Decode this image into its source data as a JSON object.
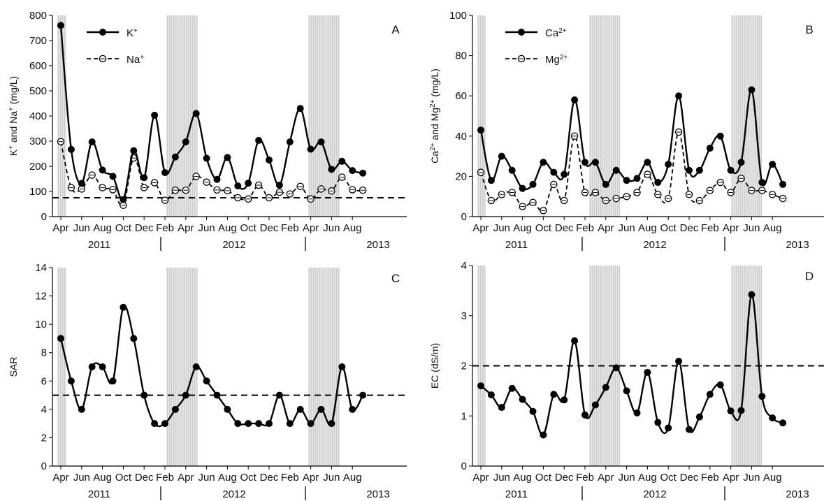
{
  "chart_data": [
    {
      "panel": "A",
      "type": "line",
      "ylabel_main": "K",
      "ylabel_sup1": "+",
      "ylabel_mid": " and Na",
      "ylabel_sup2": "+",
      "ylabel_tail": " (mg/L)",
      "ylim": [
        0,
        800
      ],
      "yticks": [
        0,
        100,
        200,
        300,
        400,
        500,
        600,
        700,
        800
      ],
      "threshold": 75,
      "series": [
        {
          "name_base": "K",
          "name_sup": "+",
          "marker": "filled",
          "line": "solid",
          "values": [
            760,
            267,
            132,
            297,
            185,
            160,
            68,
            262,
            155,
            403,
            175,
            237,
            297,
            410,
            232,
            148,
            235,
            122,
            133,
            303,
            225,
            125,
            297,
            430,
            268,
            297,
            188,
            220,
            183,
            173
          ]
        },
        {
          "name_base": "Na",
          "name_sup": "+",
          "marker": "open",
          "line": "dashed",
          "values": [
            298,
            115,
            110,
            165,
            115,
            107,
            45,
            233,
            115,
            135,
            65,
            105,
            105,
            160,
            137,
            106,
            103,
            75,
            70,
            125,
            75,
            97,
            90,
            120,
            70,
            110,
            102,
            157,
            107,
            105
          ]
        }
      ]
    },
    {
      "panel": "B",
      "type": "line",
      "ylabel_main": "Ca",
      "ylabel_sup1": "2+",
      "ylabel_mid": " and Mg",
      "ylabel_sup2": "2+",
      "ylabel_tail": " (mg/L)",
      "ylim": [
        0,
        100
      ],
      "yticks": [
        0,
        20,
        40,
        60,
        80,
        100
      ],
      "series": [
        {
          "name_base": "Ca",
          "name_sup": "2+",
          "marker": "filled",
          "line": "solid",
          "values": [
            43,
            18,
            30,
            23,
            14,
            16,
            27,
            22,
            21,
            58,
            27,
            27,
            16,
            23,
            18,
            19,
            27,
            17,
            26,
            60,
            23,
            23,
            34,
            40,
            23,
            27,
            63,
            17,
            26,
            16
          ]
        },
        {
          "name_base": "Mg",
          "name_sup": "2+",
          "marker": "open",
          "line": "dashed",
          "values": [
            22,
            8,
            11,
            12,
            5,
            7,
            3,
            16,
            8,
            40,
            12,
            12,
            8,
            9,
            10,
            12,
            21,
            11,
            9,
            42,
            11,
            8,
            13,
            17,
            12,
            19,
            13,
            13,
            11,
            9
          ]
        }
      ]
    },
    {
      "panel": "C",
      "type": "line",
      "ylabel": "SAR",
      "ylim": [
        0,
        14
      ],
      "yticks": [
        0,
        2,
        4,
        6,
        8,
        10,
        12,
        14
      ],
      "threshold": 5,
      "series": [
        {
          "marker": "filled",
          "line": "solid",
          "values": [
            9,
            6,
            4,
            7,
            7,
            6,
            11.2,
            9,
            5,
            3,
            3,
            4,
            5,
            7,
            6,
            5,
            4,
            3,
            3,
            3,
            3,
            5,
            3,
            4,
            3,
            4,
            3,
            7,
            4,
            5
          ]
        }
      ]
    },
    {
      "panel": "D",
      "type": "line",
      "ylabel": "EC (dS/m)",
      "ylim": [
        0,
        4
      ],
      "yticks": [
        0,
        1,
        2,
        3,
        4
      ],
      "threshold": 2,
      "series": [
        {
          "marker": "filled",
          "line": "solid",
          "values": [
            1.6,
            1.42,
            1.17,
            1.55,
            1.33,
            1.09,
            0.62,
            1.43,
            1.32,
            2.5,
            1.02,
            1.22,
            1.57,
            1.96,
            1.5,
            1.06,
            1.87,
            0.87,
            0.76,
            2.09,
            0.73,
            0.98,
            1.43,
            1.62,
            1.1,
            1.11,
            3.42,
            1.39,
            0.96,
            0.86
          ]
        }
      ]
    }
  ],
  "month_labels": [
    "Apr",
    "Jun",
    "Aug",
    "Oct",
    "Dec",
    "Feb",
    "Apr",
    "Jun",
    "Aug",
    "Oct",
    "Dec",
    "Feb",
    "Apr",
    "Jun",
    "Aug"
  ],
  "year_labels": [
    "2011",
    "2012",
    "2013"
  ]
}
